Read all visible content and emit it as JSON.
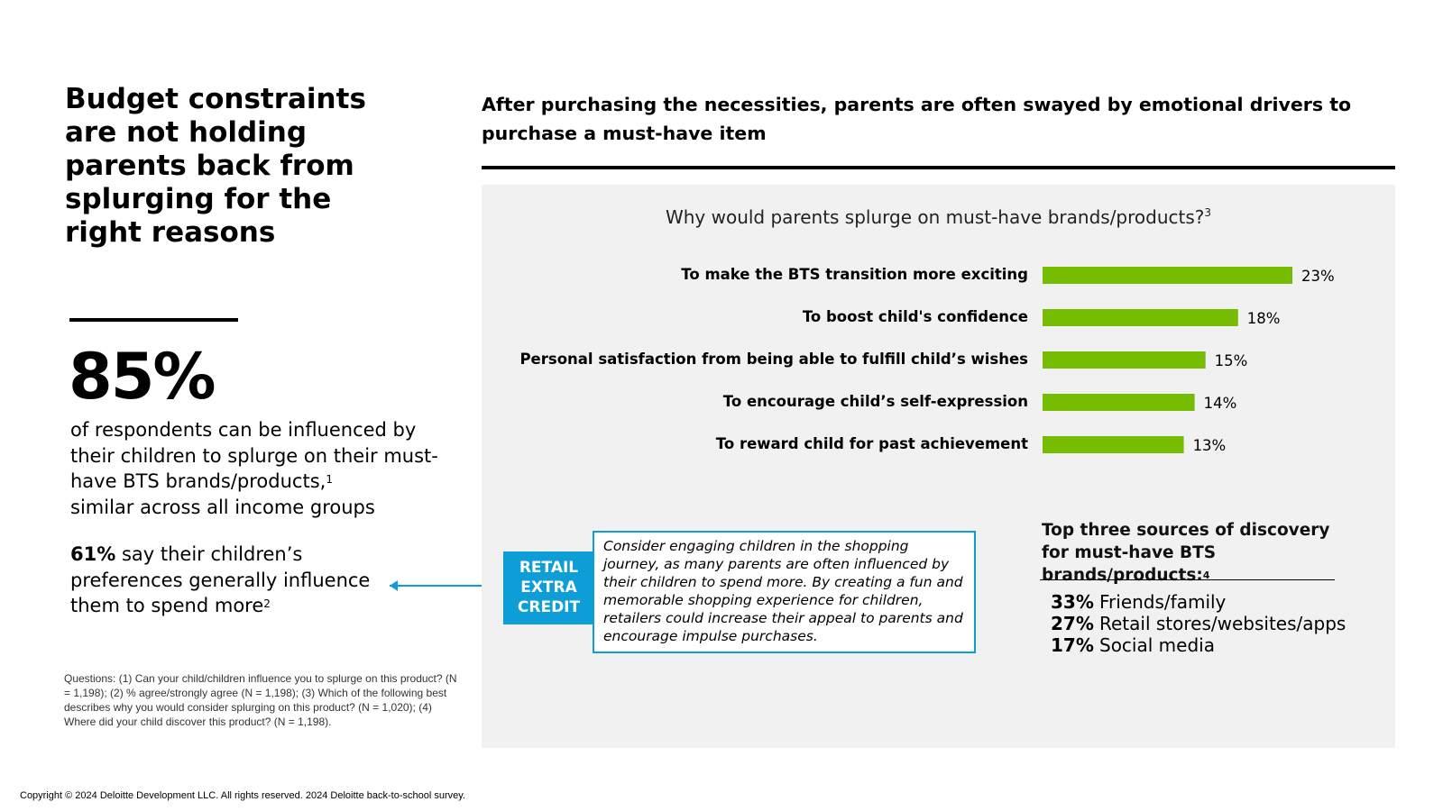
{
  "left": {
    "headline": "Budget constraints are not holding parents back from splurging for the right reasons",
    "big_stat": "85%",
    "stat_desc_main": "of respondents can be influenced by their children to splurge on their must-have BTS brands/products,",
    "stat_desc_sup": "1",
    "stat_desc_tail": "similar across all income groups",
    "second_stat_pct": "61%",
    "second_stat_text": "say their children’s preferences generally influence them to spend more",
    "second_stat_sup": "2",
    "footnote": "Questions: (1) Can your child/children influence you to splurge on this product? (N = 1,198); (2) % agree/strongly agree (N = 1,198); (3) Which of the following best describes why you would consider splurging on this product? (N = 1,020); (4) Where did your child discover this product? (N = 1,198)."
  },
  "copyright": "Copyright © 2024 Deloitte Development LLC. All rights reserved. 2024 Deloitte back-to-school survey.",
  "right": {
    "heading": "After purchasing the necessities, parents are often swayed by emotional drivers to purchase a must-have item",
    "callout_tag": "RETAIL\nEXTRA\nCREDIT",
    "callout_text": "Consider engaging children in the shopping journey, as many parents are often influenced by their children to spend more. By creating a fun and memorable shopping experience for children, retailers could increase their appeal to parents and encourage impulse purchases.",
    "sources_heading": "Top three sources of discovery for must-have BTS brands/products:",
    "sources_heading_sup": "4",
    "sources": [
      {
        "pct": "33%",
        "label": "Friends/family"
      },
      {
        "pct": "27%",
        "label": "Retail stores/websites/apps"
      },
      {
        "pct": "17%",
        "label": "Social media"
      }
    ]
  },
  "colors": {
    "bar": "#76bc00",
    "accent_blue": "#0d9ed8",
    "panel_bg": "#f1f1f1"
  },
  "chart_data": {
    "type": "bar",
    "orientation": "horizontal",
    "title": "Why would parents splurge on must-have brands/products?",
    "title_sup": "3",
    "categories": [
      "To make the BTS transition more exciting",
      "To boost child's confidence",
      "Personal satisfaction from being able to fulfill child’s wishes",
      "To encourage child’s self-expression",
      "To reward child for past achievement"
    ],
    "values": [
      23,
      18,
      15,
      14,
      13
    ],
    "value_labels": [
      "23%",
      "18%",
      "15%",
      "14%",
      "13%"
    ],
    "unit": "%",
    "xlim": [
      0,
      23
    ],
    "grid": false,
    "legend": "none"
  }
}
